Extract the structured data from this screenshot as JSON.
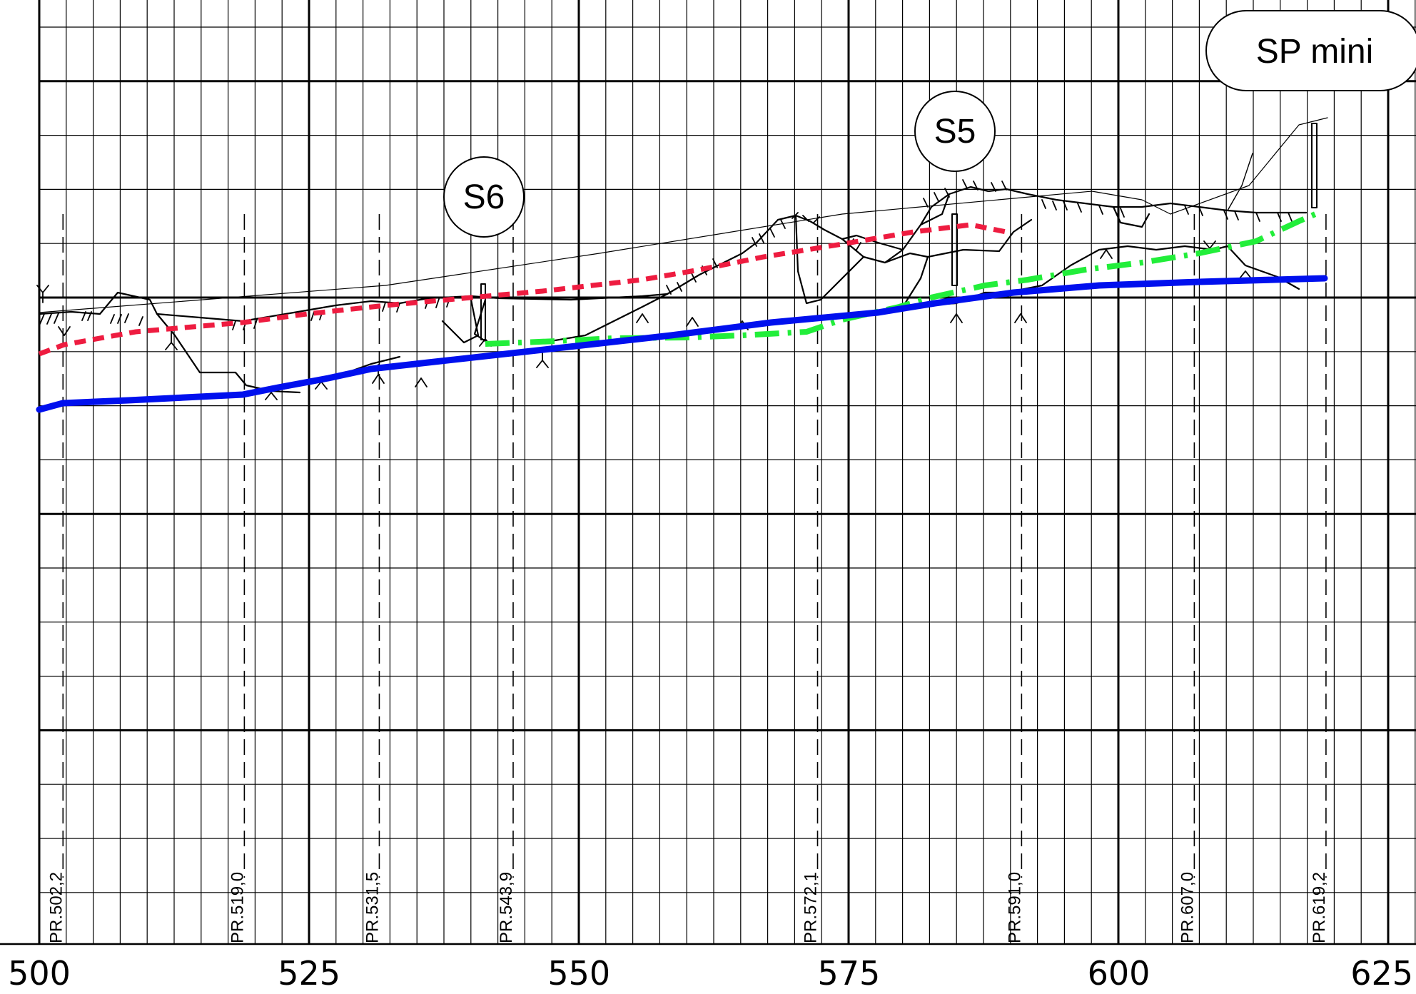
{
  "x_axis": {
    "ticks": [
      {
        "value": 500,
        "label": "500"
      },
      {
        "value": 525,
        "label": "525"
      },
      {
        "value": 550,
        "label": "550"
      },
      {
        "value": 575,
        "label": "575"
      },
      {
        "value": 600,
        "label": "600"
      },
      {
        "value": 625,
        "label": "625"
      }
    ]
  },
  "profiles": [
    {
      "chainage": 502.2,
      "label": "PR.502,2"
    },
    {
      "chainage": 519.0,
      "label": "PR.519,0"
    },
    {
      "chainage": 531.5,
      "label": "PR.531,5"
    },
    {
      "chainage": 543.9,
      "label": "PR.543,9"
    },
    {
      "chainage": 572.1,
      "label": "PR.572,1"
    },
    {
      "chainage": 591.0,
      "label": "PR.591,0"
    },
    {
      "chainage": 607.0,
      "label": "PR.607,0"
    },
    {
      "chainage": 619.2,
      "label": "PR.619,2"
    }
  ],
  "markers": {
    "s6": {
      "label": "S6"
    },
    "s5": {
      "label": "S5"
    },
    "sp_mini": {
      "label": "SP mini"
    }
  },
  "colors": {
    "blue_line": "#0010ee",
    "red_line": "#ee1c40",
    "green_line": "#22ee3a"
  }
}
